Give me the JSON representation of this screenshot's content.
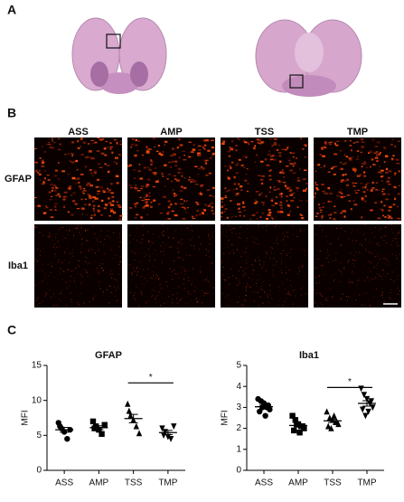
{
  "panels": {
    "a": "A",
    "b": "B",
    "c": "C"
  },
  "microscopy": {
    "columns": [
      "ASS",
      "AMP",
      "TSS",
      "TMP"
    ],
    "rows": [
      "GFAP",
      "Iba1"
    ]
  },
  "chart_data": [
    {
      "type": "scatter",
      "title": "GFAP",
      "y_label": "MFI",
      "categories": [
        "ASS",
        "AMP",
        "TSS",
        "TMP"
      ],
      "values": [
        [
          6.8,
          6.0,
          5.5,
          4.5,
          5.8,
          6.3
        ],
        [
          7.0,
          6.3,
          5.8,
          5.2,
          6.5,
          6.0
        ],
        [
          9.5,
          7.8,
          7.2,
          6.3,
          5.3,
          8.5
        ],
        [
          6.0,
          5.5,
          4.8,
          4.5,
          6.3,
          5.0
        ]
      ],
      "means": [
        5.8,
        6.1,
        7.4,
        5.4
      ],
      "sems": [
        0.35,
        0.27,
        0.6,
        0.3
      ],
      "markers": [
        "circle",
        "square",
        "triangle",
        "triangle-down"
      ],
      "color": "#000000",
      "ylim": [
        0,
        15
      ],
      "yticks": [
        0,
        5,
        10,
        15
      ],
      "significance": {
        "between": [
          2,
          3
        ],
        "label": "*",
        "y": 12.5
      }
    },
    {
      "type": "scatter",
      "title": "Iba1",
      "y_label": "MFI",
      "categories": [
        "ASS",
        "AMP",
        "TSS",
        "TMP"
      ],
      "values": [
        [
          3.4,
          3.3,
          3.2,
          3.0,
          2.9,
          2.8,
          3.0,
          2.6,
          3.1
        ],
        [
          2.6,
          2.4,
          2.2,
          2.1,
          2.0,
          1.9,
          2.2,
          1.8,
          2.1
        ],
        [
          2.8,
          2.5,
          2.4,
          2.3,
          2.2,
          2.1,
          2.0,
          2.6,
          2.3
        ],
        [
          3.9,
          3.6,
          3.4,
          3.2,
          3.0,
          2.9,
          2.6,
          2.8,
          3.3
        ]
      ],
      "means": [
        3.03,
        2.14,
        2.36,
        3.19
      ],
      "sems": [
        0.08,
        0.08,
        0.08,
        0.13
      ],
      "markers": [
        "circle",
        "square",
        "triangle",
        "triangle-down"
      ],
      "color": "#000000",
      "ylim": [
        0,
        5
      ],
      "yticks": [
        0,
        1,
        2,
        3,
        4,
        5
      ],
      "significance": {
        "between": [
          2,
          3
        ],
        "label": "*",
        "y": 3.95
      }
    }
  ]
}
